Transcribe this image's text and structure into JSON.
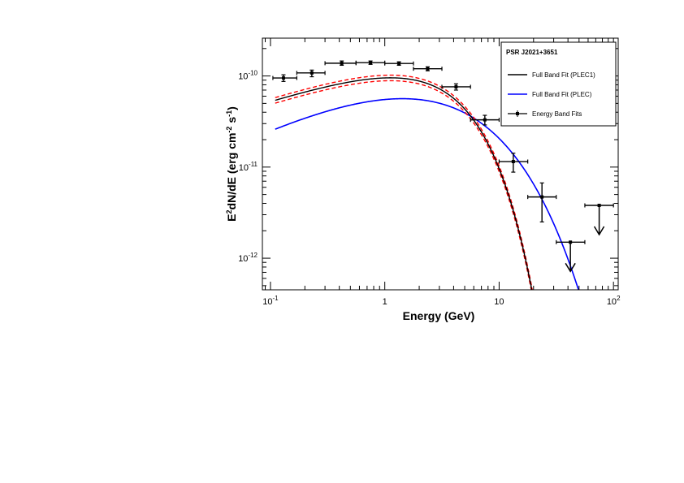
{
  "chart_data": {
    "type": "scatter",
    "title": "",
    "xlabel": "Energy (GeV)",
    "ylabel": "E²dN/dE (erg cm⁻² s⁻¹)",
    "x_scale": "log",
    "y_scale": "log",
    "xlim": [
      0.085,
      110
    ],
    "ylim": [
      4.5e-13,
      2.6e-10
    ],
    "grid": false,
    "legend_placement": "top-right",
    "legend_title": "PSR J2021+3651",
    "x_ticks": [
      {
        "value": 0.1,
        "base": "10",
        "exp": "-1"
      },
      {
        "value": 1,
        "base": "1",
        "exp": ""
      },
      {
        "value": 10,
        "base": "10",
        "exp": ""
      },
      {
        "value": 100,
        "base": "10",
        "exp": "2"
      }
    ],
    "y_ticks": [
      {
        "value": 1e-12,
        "base": "10",
        "exp": "-12"
      },
      {
        "value": 1e-11,
        "base": "10",
        "exp": "-11"
      },
      {
        "value": 1e-10,
        "base": "10",
        "exp": "-10"
      }
    ],
    "series": [
      {
        "name": "Full Band Fit (PLEC1)",
        "kind": "curve",
        "color": "#000000",
        "model": {
          "norm": 1.36e-10,
          "index": 1.6,
          "cutoff_gev": 2.8,
          "b": 1.0,
          "pivot_gev": 1.0
        }
      },
      {
        "name": "Full Band Fit (PLEC)",
        "kind": "curve",
        "color": "#0000ff",
        "model": {
          "norm": 1.46e-10,
          "index": 1.35,
          "cutoff_gev": 1.05,
          "b": 0.55,
          "pivot_gev": 1.0
        }
      },
      {
        "name": "Energy Band Fits",
        "kind": "points",
        "color": "#000000",
        "points": [
          {
            "x": 0.13,
            "y": 9.5e-11,
            "xerr": [
              0.105,
              0.17
            ],
            "yerr": [
              8.7e-11,
              1.03e-10
            ]
          },
          {
            "x": 0.23,
            "y": 1.08e-10,
            "xerr": [
              0.17,
              0.3
            ],
            "yerr": [
              9.8e-11,
              1.16e-10
            ]
          },
          {
            "x": 0.42,
            "y": 1.38e-10,
            "xerr": [
              0.3,
              0.56
            ],
            "yerr": [
              1.31e-10,
              1.46e-10
            ]
          },
          {
            "x": 0.75,
            "y": 1.4e-10,
            "xerr": [
              0.56,
              1.0
            ],
            "yerr": [
              1.34e-10,
              1.46e-10
            ]
          },
          {
            "x": 1.33,
            "y": 1.37e-10,
            "xerr": [
              1.0,
              1.78
            ],
            "yerr": [
              1.31e-10,
              1.43e-10
            ]
          },
          {
            "x": 2.37,
            "y": 1.2e-10,
            "xerr": [
              1.78,
              3.16
            ],
            "yerr": [
              1.14e-10,
              1.26e-10
            ]
          },
          {
            "x": 4.2,
            "y": 7.6e-11,
            "xerr": [
              3.16,
              5.62
            ],
            "yerr": [
              7e-11,
              8.2e-11
            ]
          },
          {
            "x": 7.5,
            "y": 3.3e-11,
            "xerr": [
              5.62,
              10.0
            ],
            "yerr": [
              2.9e-11,
              3.7e-11
            ]
          },
          {
            "x": 13.3,
            "y": 1.15e-11,
            "xerr": [
              10.0,
              17.8
            ],
            "yerr": [
              8.8e-12,
              1.42e-11
            ]
          },
          {
            "x": 23.7,
            "y": 4.7e-12,
            "xerr": [
              17.8,
              31.6
            ],
            "yerr": [
              2.5e-12,
              6.7e-12
            ]
          }
        ],
        "upper_limits": [
          {
            "x": 42,
            "y": 1.5e-12,
            "xerr": [
              31.6,
              56.2
            ]
          },
          {
            "x": 75,
            "y": 3.8e-12,
            "xerr": [
              56.2,
              100
            ]
          }
        ]
      }
    ],
    "confidence_band": {
      "color": "#ff0000",
      "style": "dashed",
      "relative_width": 0.07
    }
  }
}
